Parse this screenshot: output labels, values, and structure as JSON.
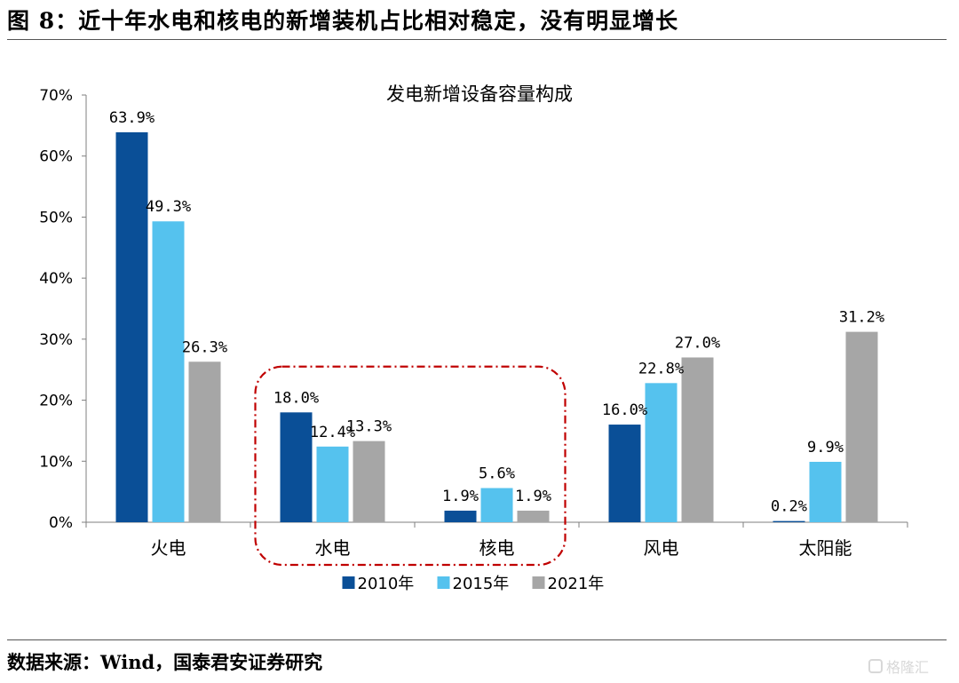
{
  "figure": {
    "title": "图 8：近十年水电和核电的新增装机占比相对稳定，没有明显增长",
    "source": "数据来源：Wind，国泰君安证券研究",
    "watermark": "格隆汇"
  },
  "chart_data": {
    "type": "bar",
    "title": "发电新增设备容量构成",
    "categories": [
      "火电",
      "水电",
      "核电",
      "风电",
      "太阳能"
    ],
    "series": [
      {
        "name": "2010年",
        "color": "#0a4f97",
        "values": [
          63.9,
          18.0,
          1.9,
          16.0,
          0.2
        ],
        "labels": [
          "63.9%",
          "18.0%",
          "1.9%",
          "16.0%",
          "0.2%"
        ]
      },
      {
        "name": "2015年",
        "color": "#55c2ee",
        "values": [
          49.3,
          12.4,
          5.6,
          22.8,
          9.9
        ],
        "labels": [
          "49.3%",
          "12.4%",
          "5.6%",
          "22.8%",
          "9.9%"
        ]
      },
      {
        "name": "2021年",
        "color": "#a6a6a6",
        "values": [
          26.3,
          13.3,
          1.9,
          27.0,
          31.2
        ],
        "labels": [
          "26.3%",
          "13.3%",
          "1.9%",
          "27.0%",
          "31.2%"
        ]
      }
    ],
    "yticks": [
      "0%",
      "10%",
      "20%",
      "30%",
      "40%",
      "50%",
      "60%",
      "70%"
    ],
    "ylim": [
      0,
      70
    ],
    "grid": false,
    "legend_position": "bottom",
    "highlight": {
      "categories": [
        "水电",
        "核电"
      ],
      "style": "dash-dot rounded box",
      "color": "#c00000"
    }
  }
}
